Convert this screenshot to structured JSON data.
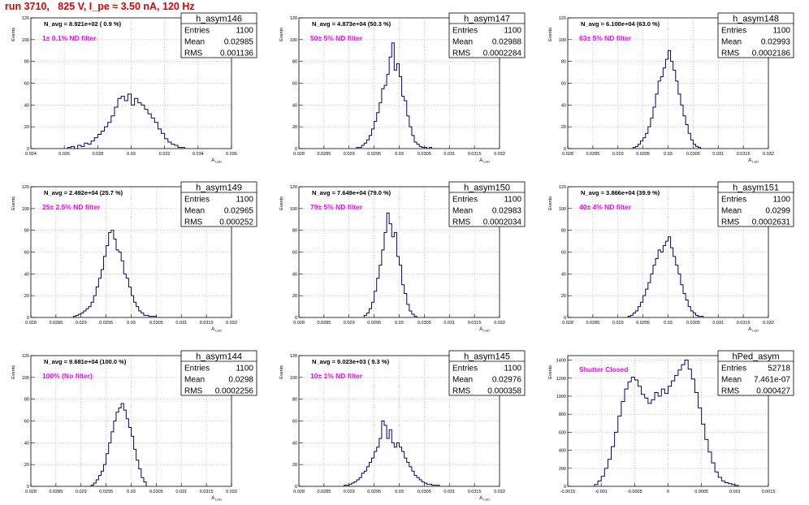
{
  "canvas_title": "run 3710,   825 V, I_pe ≈ 3.50 nA, 120 Hz",
  "colors": {
    "title": "#e00000",
    "histogram": "#00007f",
    "filter_label": "#ff00ff",
    "grid": "#aaaaaa",
    "text": "#000000"
  },
  "chart_data": [
    {
      "type": "bar",
      "histogram_name": "h_asym146",
      "stats": {
        "entries_label": "Entries",
        "entries": "1100",
        "mean_label": "Mean",
        "mean": "0.02985",
        "rms_label": "RMS",
        "rms": "0.001136"
      },
      "n_avg": "N_avg = 8.921e+02 ( 0.9 %)",
      "filter_label": "1± 0.1% ND filter",
      "ylabel": "Events",
      "xlabel": "A_LED",
      "xlim": [
        0.024,
        0.036
      ],
      "ylim": [
        0,
        120
      ],
      "xticks": [
        "0.024",
        "0.026",
        "0.028",
        "0.03",
        "0.032",
        "0.034",
        "0.036"
      ],
      "yticks": [
        "0",
        "20",
        "40",
        "60",
        "80",
        "100",
        "120"
      ],
      "grid": true,
      "bin_edges": [
        0.0262,
        0.0264,
        0.0266,
        0.0268,
        0.027,
        0.0272,
        0.0274,
        0.0276,
        0.0278,
        0.028,
        0.0282,
        0.0284,
        0.0286,
        0.0288,
        0.029,
        0.0292,
        0.0294,
        0.0296,
        0.0298,
        0.03,
        0.0302,
        0.0304,
        0.0306,
        0.0308,
        0.031,
        0.0312,
        0.0314,
        0.0316,
        0.0318,
        0.032,
        0.0322,
        0.0324,
        0.0326,
        0.0328,
        0.033,
        0.0332
      ],
      "values": [
        1,
        2,
        0,
        3,
        2,
        5,
        4,
        7,
        10,
        13,
        16,
        20,
        24,
        30,
        38,
        46,
        48,
        44,
        50,
        40,
        46,
        42,
        40,
        36,
        32,
        28,
        24,
        18,
        14,
        9,
        6,
        4,
        3,
        1,
        1
      ]
    },
    {
      "type": "bar",
      "histogram_name": "h_asym147",
      "stats": {
        "entries_label": "Entries",
        "entries": "1100",
        "mean_label": "Mean",
        "mean": "0.02988",
        "rms_label": "RMS",
        "rms": "0.0002284"
      },
      "n_avg": "N_avg = 4.873e+04 (50.3 %)",
      "filter_label": "50± 5% ND filter",
      "ylabel": "Events",
      "xlabel": "A_LED",
      "xlim": [
        0.028,
        0.032
      ],
      "ylim": [
        0,
        120
      ],
      "xticks": [
        "0.028",
        "0.0285",
        "0.029",
        "0.0295",
        "0.03",
        "0.0305",
        "0.031",
        "0.0315",
        "0.032"
      ],
      "yticks": [
        "0",
        "20",
        "40",
        "60",
        "80",
        "100",
        "120"
      ],
      "grid": true,
      "bin_edges": [
        0.02915,
        0.0292,
        0.02925,
        0.0293,
        0.02935,
        0.0294,
        0.02945,
        0.0295,
        0.02955,
        0.0296,
        0.02965,
        0.0297,
        0.02975,
        0.0298,
        0.02985,
        0.0299,
        0.02995,
        0.03,
        0.03005,
        0.0301,
        0.03015,
        0.0302,
        0.03025,
        0.0303,
        0.03035,
        0.0304,
        0.03045,
        0.0305,
        0.03055,
        0.0306,
        0.03065
      ],
      "values": [
        1,
        1,
        3,
        5,
        8,
        12,
        18,
        25,
        33,
        42,
        55,
        58,
        68,
        84,
        97,
        72,
        78,
        66,
        48,
        44,
        30,
        20,
        12,
        6,
        4,
        2,
        1,
        1,
        0,
        1
      ]
    },
    {
      "type": "bar",
      "histogram_name": "h_asym148",
      "stats": {
        "entries_label": "Entries",
        "entries": "1100",
        "mean_label": "Mean",
        "mean": "0.02993",
        "rms_label": "RMS",
        "rms": "0.0002186"
      },
      "n_avg": "N_avg = 6.100e+04 (63.0 %)",
      "filter_label": "63± 5% ND filter",
      "ylabel": "Events",
      "xlabel": "A_LED",
      "xlim": [
        0.028,
        0.032
      ],
      "ylim": [
        0,
        120
      ],
      "xticks": [
        "0.028",
        "0.0285",
        "0.029",
        "0.0295",
        "0.03",
        "0.0305",
        "0.031",
        "0.0315",
        "0.032"
      ],
      "yticks": [
        "0",
        "20",
        "40",
        "60",
        "80",
        "100",
        "120"
      ],
      "grid": true,
      "bin_edges": [
        0.0293,
        0.02935,
        0.0294,
        0.02945,
        0.0295,
        0.02955,
        0.0296,
        0.02965,
        0.0297,
        0.02975,
        0.0298,
        0.02985,
        0.0299,
        0.02995,
        0.03,
        0.03005,
        0.0301,
        0.03015,
        0.0302,
        0.03025,
        0.0303,
        0.03035,
        0.0304,
        0.03045,
        0.0305,
        0.03055,
        0.0306,
        0.03065
      ],
      "values": [
        1,
        2,
        4,
        7,
        10,
        14,
        20,
        28,
        38,
        50,
        62,
        66,
        74,
        82,
        90,
        80,
        72,
        62,
        50,
        40,
        30,
        22,
        14,
        8,
        4,
        2,
        1
      ]
    },
    {
      "type": "bar",
      "histogram_name": "h_asym149",
      "stats": {
        "entries_label": "Entries",
        "entries": "1100",
        "mean_label": "Mean",
        "mean": "0.02965",
        "rms_label": "RMS",
        "rms": "0.000252"
      },
      "n_avg": "N_avg = 2.492e+04 (25.7 %)",
      "filter_label": "25± 2.5% ND filter",
      "ylabel": "Events",
      "xlabel": "A_LED",
      "xlim": [
        0.028,
        0.032
      ],
      "ylim": [
        0,
        120
      ],
      "xticks": [
        "0.028",
        "0.0285",
        "0.029",
        "0.0295",
        "0.03",
        "0.0305",
        "0.031",
        "0.0315",
        "0.032"
      ],
      "yticks": [
        "0",
        "20",
        "40",
        "60",
        "80",
        "100",
        "120"
      ],
      "grid": true,
      "bin_edges": [
        0.02885,
        0.0289,
        0.02895,
        0.029,
        0.02905,
        0.0291,
        0.02915,
        0.0292,
        0.02925,
        0.0293,
        0.02935,
        0.0294,
        0.02945,
        0.0295,
        0.02955,
        0.0296,
        0.02965,
        0.0297,
        0.02975,
        0.0298,
        0.02985,
        0.0299,
        0.02995,
        0.03,
        0.03005,
        0.0301,
        0.03015,
        0.0302,
        0.03025,
        0.0303,
        0.03035,
        0.0304,
        0.03045,
        0.0305
      ],
      "values": [
        1,
        2,
        3,
        4,
        6,
        8,
        10,
        14,
        20,
        28,
        36,
        44,
        56,
        66,
        78,
        80,
        72,
        62,
        60,
        52,
        40,
        36,
        28,
        20,
        14,
        10,
        6,
        4,
        2,
        2,
        1,
        1,
        1
      ]
    },
    {
      "type": "bar",
      "histogram_name": "h_asym150",
      "stats": {
        "entries_label": "Entries",
        "entries": "1100",
        "mean_label": "Mean",
        "mean": "0.02983",
        "rms_label": "RMS",
        "rms": "0.0002034"
      },
      "n_avg": "N_avg = 7.649e+04 (79.0 %)",
      "filter_label": "79± 5% ND filter",
      "ylabel": "Events",
      "xlabel": "A_LED",
      "xlim": [
        0.028,
        0.032
      ],
      "ylim": [
        0,
        120
      ],
      "xticks": [
        "0.028",
        "0.0285",
        "0.029",
        "0.0295",
        "0.03",
        "0.0305",
        "0.031",
        "0.0315",
        "0.032"
      ],
      "yticks": [
        "0",
        "20",
        "40",
        "60",
        "80",
        "100",
        "120"
      ],
      "grid": true,
      "bin_edges": [
        0.0293,
        0.02935,
        0.0294,
        0.02945,
        0.0295,
        0.02955,
        0.0296,
        0.02965,
        0.0297,
        0.02975,
        0.0298,
        0.02985,
        0.0299,
        0.02995,
        0.03,
        0.03005,
        0.0301,
        0.03015,
        0.0302,
        0.03025,
        0.0303,
        0.03035
      ],
      "values": [
        2,
        4,
        8,
        14,
        24,
        36,
        48,
        62,
        78,
        96,
        86,
        74,
        78,
        56,
        48,
        30,
        22,
        12,
        6,
        3,
        1
      ]
    },
    {
      "type": "bar",
      "histogram_name": "h_asym151",
      "stats": {
        "entries_label": "Entries",
        "entries": "1100",
        "mean_label": "Mean",
        "mean": "0.0299",
        "rms_label": "RMS",
        "rms": "0.0002631"
      },
      "n_avg": "N_avg = 3.866e+04 (39.9 %)",
      "filter_label": "40± 4% ND filter",
      "ylabel": "Events",
      "xlabel": "A_LED",
      "xlim": [
        0.028,
        0.032
      ],
      "ylim": [
        0,
        120
      ],
      "xticks": [
        "0.028",
        "0.0285",
        "0.029",
        "0.0295",
        "0.03",
        "0.0305",
        "0.031",
        "0.0315",
        "0.032"
      ],
      "yticks": [
        "0",
        "20",
        "40",
        "60",
        "80",
        "100",
        "120"
      ],
      "grid": true,
      "bin_edges": [
        0.0292,
        0.02925,
        0.0293,
        0.02935,
        0.0294,
        0.02945,
        0.0295,
        0.02955,
        0.0296,
        0.02965,
        0.0297,
        0.02975,
        0.0298,
        0.02985,
        0.0299,
        0.02995,
        0.03,
        0.03005,
        0.0301,
        0.03015,
        0.0302,
        0.03025,
        0.0303,
        0.03035,
        0.0304,
        0.03045,
        0.0305,
        0.03055,
        0.0306,
        0.03065,
        0.0307
      ],
      "values": [
        1,
        2,
        4,
        6,
        10,
        14,
        20,
        26,
        32,
        40,
        48,
        54,
        62,
        60,
        66,
        70,
        74,
        64,
        56,
        48,
        40,
        30,
        22,
        16,
        10,
        6,
        4,
        2,
        1,
        1
      ]
    },
    {
      "type": "bar",
      "histogram_name": "h_asym144",
      "stats": {
        "entries_label": "Entries",
        "entries": "1100",
        "mean_label": "Mean",
        "mean": "0.0298",
        "rms_label": "RMS",
        "rms": "0.0002256"
      },
      "n_avg": "N_avg = 9.681e+04 (100.0 %)",
      "filter_label": "100% (No filter)",
      "ylabel": "Events",
      "xlabel": "A_LED",
      "xlim": [
        0.028,
        0.032
      ],
      "ylim": [
        0,
        120
      ],
      "xticks": [
        "0.028",
        "0.0285",
        "0.029",
        "0.0295",
        "0.03",
        "0.0305",
        "0.031",
        "0.0315",
        "0.032"
      ],
      "yticks": [
        "0",
        "20",
        "40",
        "60",
        "80",
        "100",
        "120"
      ],
      "grid": true,
      "bin_edges": [
        0.0292,
        0.02925,
        0.0293,
        0.02935,
        0.0294,
        0.02945,
        0.0295,
        0.02955,
        0.0296,
        0.02965,
        0.0297,
        0.02975,
        0.0298,
        0.02985,
        0.0299,
        0.02995,
        0.03,
        0.03005,
        0.0301,
        0.03015,
        0.0302,
        0.03025,
        0.0303
      ],
      "values": [
        1,
        3,
        6,
        10,
        14,
        20,
        30,
        40,
        50,
        60,
        68,
        72,
        76,
        70,
        62,
        54,
        46,
        34,
        24,
        16,
        8,
        4
      ]
    },
    {
      "type": "bar",
      "histogram_name": "h_asym145",
      "stats": {
        "entries_label": "Entries",
        "entries": "1100",
        "mean_label": "Mean",
        "mean": "0.02976",
        "rms_label": "RMS",
        "rms": "0.000358"
      },
      "n_avg": "N_avg = 9.023e+03 ( 9.3 %)",
      "filter_label": "10± 1% ND filter",
      "ylabel": "Events",
      "xlabel": "A_LED",
      "xlim": [
        0.028,
        0.032
      ],
      "ylim": [
        0,
        120
      ],
      "xticks": [
        "0.028",
        "0.0285",
        "0.029",
        "0.0295",
        "0.03",
        "0.0305",
        "0.031",
        "0.0315",
        "0.032"
      ],
      "yticks": [
        "0",
        "20",
        "40",
        "60",
        "80",
        "100",
        "120"
      ],
      "grid": true,
      "bin_edges": [
        0.0289,
        0.02895,
        0.029,
        0.02905,
        0.0291,
        0.02915,
        0.0292,
        0.02925,
        0.0293,
        0.02935,
        0.0294,
        0.02945,
        0.0295,
        0.02955,
        0.0296,
        0.02965,
        0.0297,
        0.02975,
        0.0298,
        0.02985,
        0.0299,
        0.02995,
        0.03,
        0.03005,
        0.0301,
        0.03015,
        0.0302,
        0.03025,
        0.0303,
        0.03035,
        0.0304,
        0.03045,
        0.0305,
        0.03055,
        0.0306,
        0.03065,
        0.0307,
        0.03075,
        0.0308
      ],
      "values": [
        1,
        1,
        2,
        3,
        4,
        6,
        8,
        12,
        14,
        18,
        22,
        26,
        32,
        36,
        44,
        60,
        56,
        44,
        52,
        40,
        36,
        40,
        36,
        32,
        26,
        22,
        18,
        14,
        10,
        8,
        6,
        4,
        3,
        2,
        2,
        1,
        1,
        1
      ]
    },
    {
      "type": "bar",
      "histogram_name": "hPed_asym",
      "stats": {
        "entries_label": "Entries",
        "entries": "52718",
        "mean_label": "Mean",
        "mean": "7.461e-07",
        "rms_label": "RMS",
        "rms": "0.000427"
      },
      "n_avg": "",
      "filter_label": "Shutter Closed",
      "ylabel": "Events",
      "xlabel": "",
      "xlim": [
        -0.0015,
        0.0015
      ],
      "ylim": [
        0,
        1450
      ],
      "xticks": [
        "-0.0015",
        "-0.001",
        "-0.0005",
        "0",
        "0.0005",
        "0.001",
        "0.0015"
      ],
      "yticks": [
        "0",
        "200",
        "400",
        "600",
        "800",
        "1000",
        "1200",
        "1400"
      ],
      "grid": true,
      "bin_edges": [
        -0.0011,
        -0.00105,
        -0.001,
        -0.00095,
        -0.0009,
        -0.00085,
        -0.0008,
        -0.00075,
        -0.0007,
        -0.00065,
        -0.0006,
        -0.00055,
        -0.0005,
        -0.00045,
        -0.0004,
        -0.00035,
        -0.0003,
        -0.00025,
        -0.0002,
        -0.00015,
        -0.0001,
        -5e-05,
        0.0,
        5e-05,
        0.0001,
        0.00015,
        0.0002,
        0.00025,
        0.0003,
        0.00035,
        0.0004,
        0.00045,
        0.0005,
        0.00055,
        0.0006,
        0.00065,
        0.0007,
        0.00075,
        0.0008,
        0.00085,
        0.0009,
        0.00095,
        0.001,
        0.00105
      ],
      "values": [
        20,
        60,
        110,
        200,
        300,
        440,
        600,
        780,
        940,
        1080,
        1160,
        1210,
        1180,
        1110,
        1020,
        980,
        920,
        960,
        1040,
        1000,
        1080,
        1030,
        1110,
        1170,
        1230,
        1290,
        1350,
        1400,
        1300,
        1190,
        1040,
        870,
        690,
        520,
        380,
        260,
        160,
        100,
        60,
        40,
        30,
        20,
        10
      ]
    }
  ]
}
